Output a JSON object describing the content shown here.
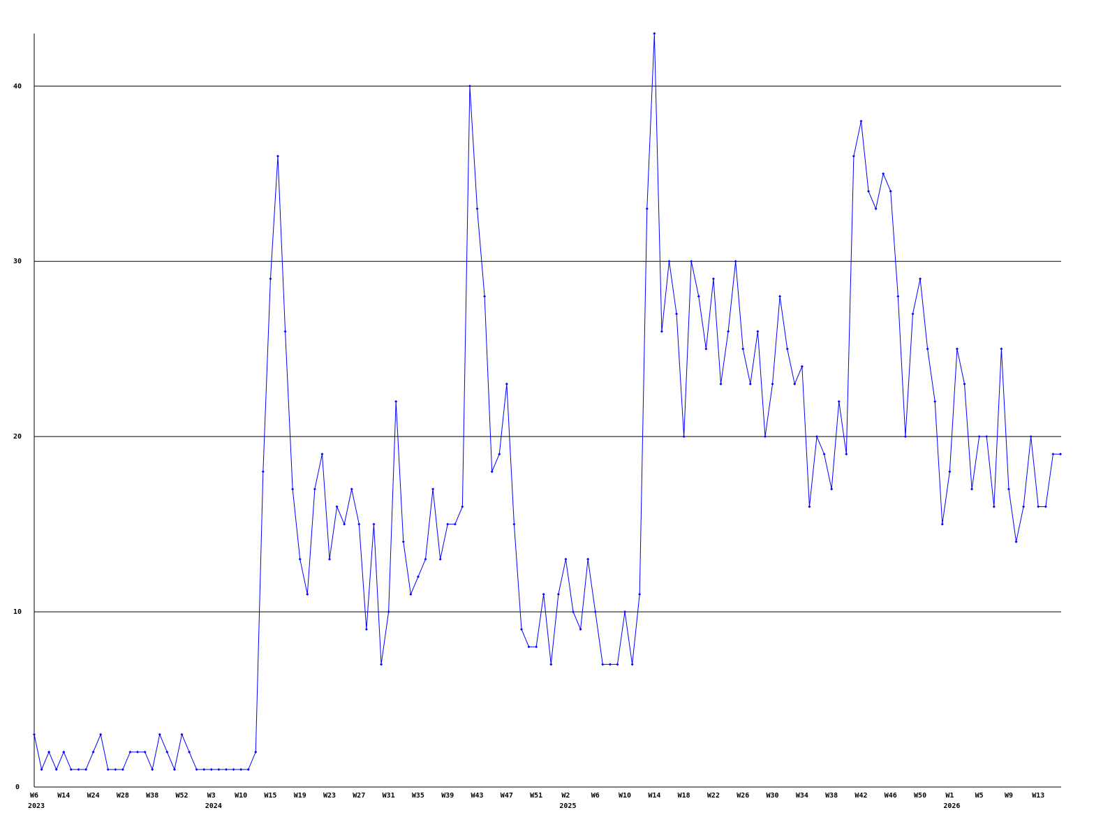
{
  "chart_data": {
    "type": "line",
    "color": "#0000ff",
    "categories": [
      "W6",
      null,
      null,
      null,
      "W14",
      null,
      null,
      null,
      "W24",
      null,
      null,
      null,
      "W28",
      null,
      null,
      null,
      "W38",
      null,
      null,
      null,
      "W52",
      null,
      null,
      null,
      "W3",
      null,
      null,
      null,
      "W10",
      null,
      null,
      null,
      "W15",
      null,
      null,
      null,
      "W19",
      null,
      null,
      null,
      "W23",
      null,
      null,
      null,
      "W27",
      null,
      null,
      null,
      "W31",
      null,
      null,
      null,
      "W35",
      null,
      null,
      null,
      "W39",
      null,
      null,
      null,
      "W43",
      null,
      null,
      null,
      "W47",
      null,
      null,
      null,
      "W51",
      null,
      null,
      null,
      "W2",
      null,
      null,
      null,
      "W6",
      null,
      null,
      null,
      "W10",
      null,
      null,
      null,
      "W14",
      null,
      null,
      null,
      "W18",
      null,
      null,
      null,
      "W22",
      null,
      null,
      null,
      "W26",
      null,
      null,
      null,
      "W30",
      null,
      null,
      null,
      "W34",
      null,
      null,
      null,
      "W38",
      null,
      null,
      null,
      "W42",
      null,
      null,
      null,
      "W46",
      null,
      null,
      null,
      "W50",
      null,
      null,
      null,
      "W1",
      null,
      null,
      null,
      "W5",
      null,
      null,
      null,
      "W9",
      null,
      null,
      null,
      "W13",
      null,
      null,
      null
    ],
    "years": [
      "2023",
      null,
      null,
      null,
      null,
      null,
      null,
      null,
      null,
      null,
      null,
      null,
      null,
      null,
      null,
      null,
      null,
      null,
      null,
      null,
      null,
      null,
      null,
      null,
      "2024",
      null,
      null,
      null,
      null,
      null,
      null,
      null,
      null,
      null,
      null,
      null,
      null,
      null,
      null,
      null,
      null,
      null,
      null,
      null,
      null,
      null,
      null,
      null,
      null,
      null,
      null,
      null,
      null,
      null,
      null,
      null,
      null,
      null,
      null,
      null,
      null,
      null,
      null,
      null,
      null,
      null,
      null,
      null,
      null,
      null,
      null,
      null,
      "2025",
      null,
      null,
      null,
      null,
      null,
      null,
      null,
      null,
      null,
      null,
      null,
      null,
      null,
      null,
      null,
      null,
      null,
      null,
      null,
      null,
      null,
      null,
      null,
      null,
      null,
      null,
      null,
      null,
      null,
      null,
      null,
      null,
      null,
      null,
      null,
      null,
      null,
      null,
      null,
      null,
      null,
      null,
      null,
      null,
      null,
      null,
      null,
      null,
      null,
      null,
      null,
      "2026",
      null,
      null,
      null,
      null,
      null,
      null,
      null,
      null,
      null,
      null,
      null,
      null,
      null,
      null,
      null
    ],
    "values": [
      3,
      1,
      2,
      1,
      2,
      1,
      1,
      1,
      2,
      3,
      1,
      1,
      1,
      2,
      2,
      2,
      1,
      3,
      2,
      1,
      3,
      2,
      1,
      1,
      1,
      1,
      1,
      1,
      1,
      1,
      2,
      18,
      29,
      36,
      26,
      17,
      13,
      11,
      17,
      19,
      13,
      16,
      15,
      17,
      15,
      9,
      15,
      7,
      10,
      22,
      14,
      11,
      12,
      13,
      17,
      13,
      15,
      15,
      16,
      40,
      33,
      28,
      18,
      19,
      23,
      15,
      9,
      8,
      8,
      11,
      7,
      11,
      13,
      10,
      9,
      13,
      10,
      7,
      7,
      7,
      10,
      7,
      11,
      33,
      43,
      26,
      30,
      27,
      20,
      30,
      28,
      25,
      29,
      23,
      26,
      30,
      25,
      23,
      26,
      20,
      23,
      28,
      25,
      23,
      24,
      16,
      20,
      19,
      17,
      22,
      19,
      36,
      38,
      34,
      33,
      35,
      34,
      28,
      20,
      27,
      29,
      25,
      22,
      15,
      18,
      25,
      23,
      17,
      20,
      20,
      16,
      25,
      17,
      14,
      16,
      20,
      16,
      16,
      19,
      19
    ],
    "ylim": [
      0,
      43
    ],
    "yticks": [
      0,
      10,
      20,
      30,
      40
    ],
    "grid": true
  }
}
